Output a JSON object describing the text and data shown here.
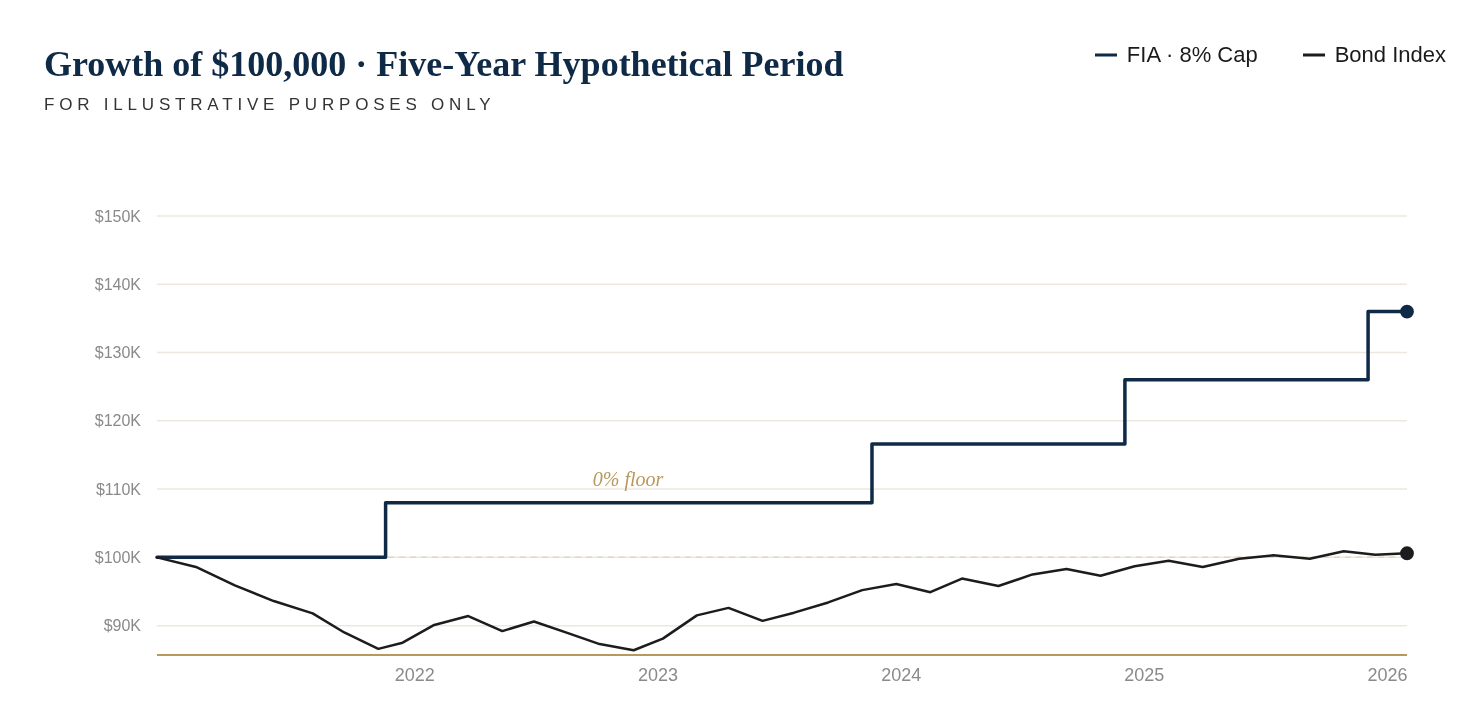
{
  "chart_data": {
    "type": "line",
    "title": "Growth of $100,000 · Five-Year Hypothetical Period",
    "subtitle": "FOR ILLUSTRATIVE PURPOSES ONLY",
    "xlim": [
      2020.94,
      2026.08
    ],
    "xticks": [
      2022,
      2023,
      2024,
      2025,
      2026
    ],
    "ylim": [
      85.7,
      150
    ],
    "yticks": [
      {
        "value": 90,
        "label": "$90K"
      },
      {
        "value": 100,
        "label": "$100K"
      },
      {
        "value": 110,
        "label": "$110K"
      },
      {
        "value": 120,
        "label": "$120K"
      },
      {
        "value": 130,
        "label": "$130K"
      },
      {
        "value": 140,
        "label": "$140K"
      },
      {
        "value": 150,
        "label": "$150K"
      }
    ],
    "grid": "y",
    "legend": "top right",
    "series": [
      {
        "name": "FIA · 8% Cap",
        "type": "step",
        "color": "#0f2a47",
        "x": [
          2020.94,
          2021.88,
          2023.88,
          2024.92,
          2025.92,
          2026.08
        ],
        "values": [
          100,
          108,
          116.6,
          126,
          136,
          136
        ]
      },
      {
        "name": "Bond Index",
        "type": "line",
        "color": "#1c1c1e",
        "x": [
          2020.94,
          2021.1,
          2021.26,
          2021.42,
          2021.58,
          2021.71,
          2021.85,
          2021.95,
          2022.08,
          2022.22,
          2022.36,
          2022.49,
          2022.63,
          2022.76,
          2022.9,
          2023.02,
          2023.16,
          2023.29,
          2023.43,
          2023.56,
          2023.7,
          2023.84,
          2023.98,
          2024.12,
          2024.25,
          2024.4,
          2024.54,
          2024.68,
          2024.82,
          2024.96,
          2025.1,
          2025.24,
          2025.39,
          2025.53,
          2025.68,
          2025.82,
          2025.95,
          2026.08
        ],
        "values": [
          100,
          98.6,
          95.9,
          93.6,
          91.8,
          89,
          86.6,
          87.5,
          90.1,
          91.4,
          89.2,
          90.6,
          88.9,
          87.3,
          86.4,
          88.1,
          91.5,
          92.6,
          90.7,
          91.9,
          93.4,
          95.2,
          96.1,
          94.9,
          96.9,
          95.8,
          97.5,
          98.3,
          97.3,
          98.7,
          99.5,
          98.6,
          99.8,
          100.3,
          99.8,
          100.9,
          100.4,
          100.6
        ]
      },
      {
        "type": "scatter",
        "color": "#0f2a47",
        "marker": "circle",
        "x": [
          2026.08
        ],
        "values": [
          136
        ]
      },
      {
        "type": "scatter",
        "color": "#1c1c1e",
        "marker": "circle",
        "x": [
          2026.08
        ],
        "values": [
          100.6
        ]
      }
    ],
    "ref_lines": [
      {
        "axis": "y",
        "value": 100,
        "color": "#e6d6bb",
        "line_style": "dashed"
      }
    ],
    "annotations": [
      "0% floor"
    ]
  }
}
